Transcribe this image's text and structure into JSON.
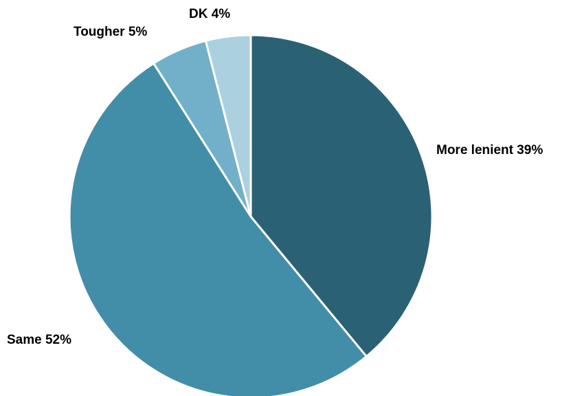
{
  "chart_data": {
    "type": "pie",
    "start_angle_deg": 0,
    "direction": "clockwise",
    "slice_border_color": "#ffffff",
    "slices": [
      {
        "category": "More lenient",
        "value": 39,
        "label": "More lenient 39%",
        "color": "#2b6174"
      },
      {
        "category": "Same",
        "value": 52,
        "label": "Same 52%",
        "color": "#428ea9"
      },
      {
        "category": "Tougher",
        "value": 5,
        "label": "Tougher 5%",
        "color": "#72b0c9"
      },
      {
        "category": "DK",
        "value": 4,
        "label": "DK 4%",
        "color": "#abd0e0"
      }
    ]
  }
}
